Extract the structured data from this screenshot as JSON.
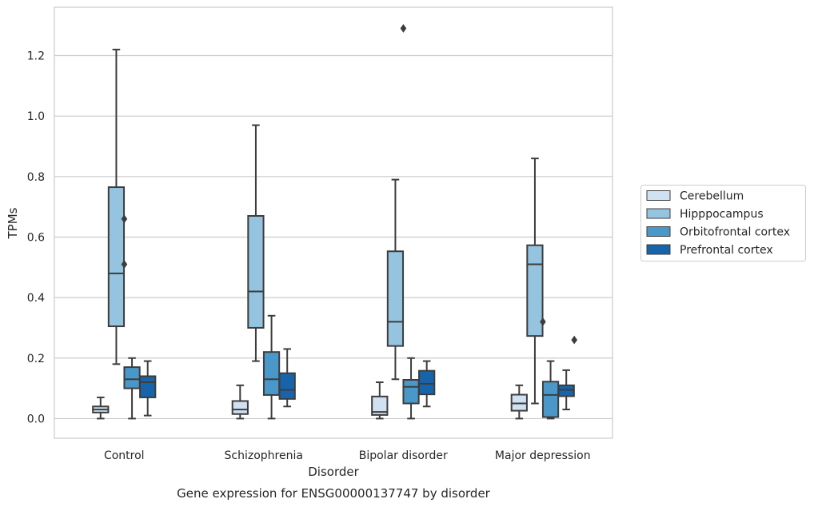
{
  "chart_data": {
    "type": "box",
    "title": "Gene expression for ENSG00000137747 by disorder",
    "xlabel": "Disorder",
    "ylabel": "TPMs",
    "ylim": [
      -0.065,
      1.36
    ],
    "yticks": [
      0.0,
      0.2,
      0.4,
      0.6,
      0.8,
      1.0,
      1.2
    ],
    "ytick_labels": [
      "0.0",
      "0.2",
      "0.4",
      "0.6",
      "0.8",
      "1.0",
      "1.2"
    ],
    "grid": true,
    "legend_position": "right",
    "categories": [
      "Control",
      "Schizophrenia",
      "Bipolar disorder",
      "Major depression"
    ],
    "series": [
      {
        "name": "Cerebellum",
        "color": "#d0e1f2",
        "boxes": [
          {
            "whislo": 0.0,
            "q1": 0.02,
            "med": 0.03,
            "q3": 0.04,
            "whishi": 0.07,
            "fliers": []
          },
          {
            "whislo": 0.0,
            "q1": 0.015,
            "med": 0.03,
            "q3": 0.058,
            "whishi": 0.11,
            "fliers": []
          },
          {
            "whislo": 0.0,
            "q1": 0.012,
            "med": 0.022,
            "q3": 0.073,
            "whishi": 0.12,
            "fliers": []
          },
          {
            "whislo": 0.0,
            "q1": 0.026,
            "med": 0.05,
            "q3": 0.079,
            "whishi": 0.11,
            "fliers": []
          }
        ]
      },
      {
        "name": "Hipppocampus",
        "color": "#94c4df",
        "boxes": [
          {
            "whislo": 0.18,
            "q1": 0.305,
            "med": 0.48,
            "q3": 0.765,
            "whishi": 1.22,
            "fliers": [
              0.51,
              0.66
            ]
          },
          {
            "whislo": 0.19,
            "q1": 0.3,
            "med": 0.42,
            "q3": 0.67,
            "whishi": 0.97,
            "fliers": []
          },
          {
            "whislo": 0.13,
            "q1": 0.24,
            "med": 0.32,
            "q3": 0.553,
            "whishi": 0.79,
            "fliers": [
              1.29
            ]
          },
          {
            "whislo": 0.05,
            "q1": 0.273,
            "med": 0.51,
            "q3": 0.573,
            "whishi": 0.86,
            "fliers": [
              0.32
            ]
          }
        ]
      },
      {
        "name": "Orbitofrontal cortex",
        "color": "#4a98c9",
        "boxes": [
          {
            "whislo": 0.0,
            "q1": 0.1,
            "med": 0.13,
            "q3": 0.17,
            "whishi": 0.2,
            "fliers": []
          },
          {
            "whislo": 0.0,
            "q1": 0.078,
            "med": 0.13,
            "q3": 0.22,
            "whishi": 0.34,
            "fliers": []
          },
          {
            "whislo": 0.0,
            "q1": 0.05,
            "med": 0.105,
            "q3": 0.128,
            "whishi": 0.2,
            "fliers": []
          },
          {
            "whislo": 0.0,
            "q1": 0.005,
            "med": 0.078,
            "q3": 0.122,
            "whishi": 0.19,
            "fliers": []
          }
        ]
      },
      {
        "name": "Prefrontal cortex",
        "color": "#1764ab",
        "boxes": [
          {
            "whislo": 0.01,
            "q1": 0.07,
            "med": 0.12,
            "q3": 0.14,
            "whishi": 0.19,
            "fliers": []
          },
          {
            "whislo": 0.04,
            "q1": 0.065,
            "med": 0.095,
            "q3": 0.15,
            "whishi": 0.23,
            "fliers": []
          },
          {
            "whislo": 0.04,
            "q1": 0.08,
            "med": 0.115,
            "q3": 0.158,
            "whishi": 0.19,
            "fliers": []
          },
          {
            "whislo": 0.03,
            "q1": 0.074,
            "med": 0.095,
            "q3": 0.11,
            "whishi": 0.16,
            "fliers": [
              0.26
            ]
          }
        ]
      }
    ]
  }
}
